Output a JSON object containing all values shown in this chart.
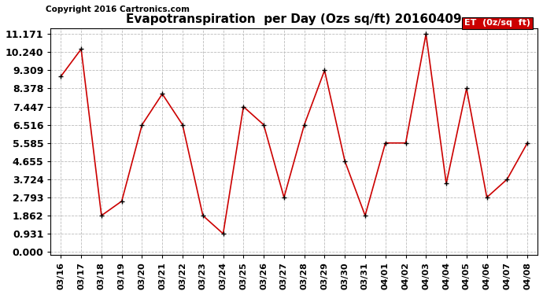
{
  "title": "Evapotranspiration  per Day (Ozs sq/ft) 20160409",
  "copyright": "Copyright 2016 Cartronics.com",
  "legend_label": "ET  (0z/sq  ft)",
  "dates": [
    "03/16",
    "03/17",
    "03/18",
    "03/19",
    "03/20",
    "03/21",
    "03/22",
    "03/23",
    "03/24",
    "03/25",
    "03/26",
    "03/27",
    "03/28",
    "03/29",
    "03/30",
    "03/31",
    "04/01",
    "04/02",
    "04/03",
    "04/04",
    "04/05",
    "04/06",
    "04/07",
    "04/08"
  ],
  "values": [
    9.0,
    10.4,
    1.862,
    2.6,
    6.516,
    8.1,
    6.516,
    1.862,
    0.931,
    7.447,
    6.516,
    2.793,
    6.516,
    9.309,
    4.655,
    1.862,
    5.585,
    5.585,
    11.171,
    3.5,
    8.378,
    2.793,
    3.724,
    5.585
  ],
  "yticks": [
    0.0,
    0.931,
    1.862,
    2.793,
    3.724,
    4.655,
    5.585,
    6.516,
    7.447,
    8.378,
    9.309,
    10.24,
    11.171
  ],
  "line_color": "#cc0000",
  "marker_color": "#000000",
  "bg_color": "#ffffff",
  "grid_color": "#bbbbbb",
  "legend_bg": "#cc0000",
  "legend_text_color": "#ffffff",
  "title_fontsize": 11,
  "copyright_fontsize": 7.5,
  "ytick_fontsize": 9,
  "xtick_fontsize": 8,
  "figsize": [
    6.9,
    3.75
  ],
  "dpi": 100
}
